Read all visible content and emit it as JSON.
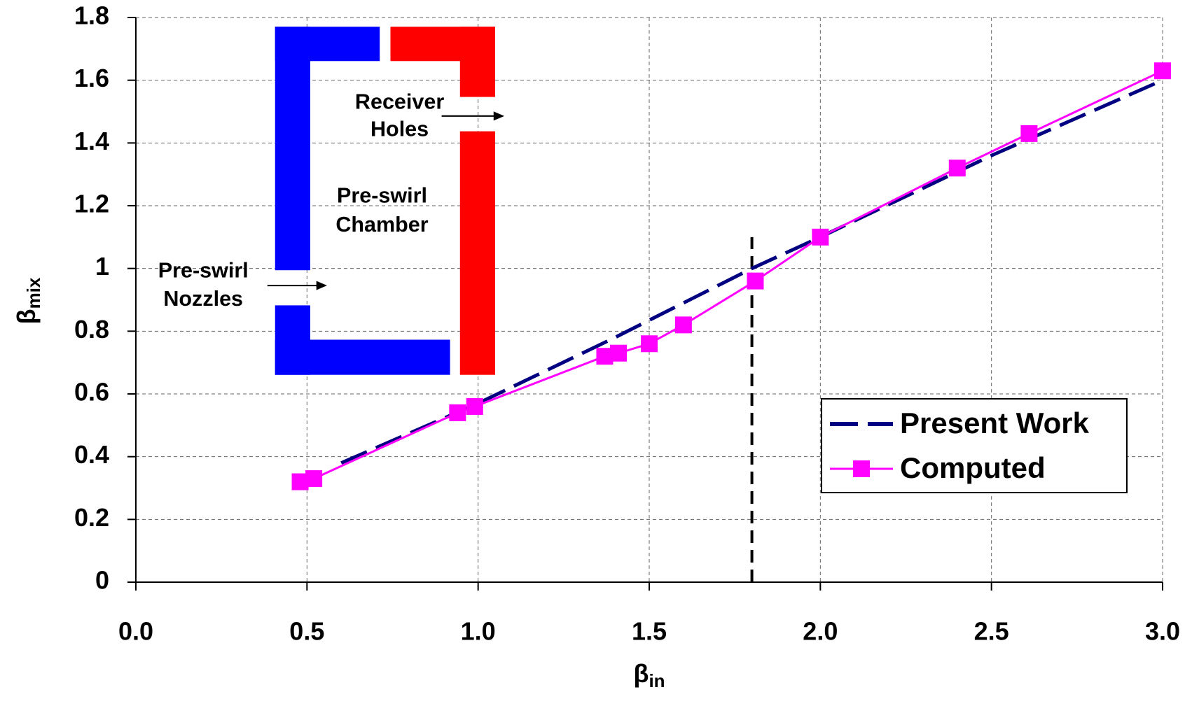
{
  "chart_data": {
    "type": "line",
    "xlabel": {
      "text": "β",
      "sub": "in"
    },
    "ylabel": {
      "text": "β",
      "sub": "mix"
    },
    "xlim": [
      0,
      3
    ],
    "ylim": [
      0,
      1.8
    ],
    "xticks": [
      {
        "value": 0,
        "label": "0.0"
      },
      0.5,
      {
        "value": 1,
        "label": "1.0"
      },
      1.5,
      {
        "value": 2,
        "label": "2.0"
      },
      2.5,
      {
        "value": 3,
        "label": "3.0"
      }
    ],
    "yticks": [
      0,
      0.2,
      0.4,
      0.6,
      0.8,
      1,
      1.2,
      1.4,
      1.6,
      1.8
    ],
    "grid": true,
    "legend": "lower right",
    "series": [
      {
        "name": "Present Work",
        "color": "#000080",
        "style": "dashed",
        "x": [
          0.6,
          1.0,
          1.4,
          1.8,
          2.0,
          2.5,
          3.0
        ],
        "values": [
          0.38,
          0.57,
          0.78,
          1.0,
          1.1,
          1.36,
          1.6
        ]
      },
      {
        "name": "Computed",
        "color": "#ff00ff",
        "style": "solid",
        "marker": "square",
        "x": [
          0.48,
          0.52,
          0.94,
          0.99,
          1.37,
          1.41,
          1.5,
          1.6,
          1.81,
          2.0,
          2.4,
          2.61,
          3.0
        ],
        "values": [
          0.32,
          0.33,
          0.54,
          0.56,
          0.72,
          0.73,
          0.76,
          0.82,
          0.96,
          1.1,
          1.32,
          1.43,
          1.63
        ]
      }
    ],
    "reference_line": {
      "x": 1.8,
      "y": [
        0,
        1.1
      ]
    },
    "annotations": [
      [
        "Receiver",
        "Holes"
      ],
      [
        "Pre-swirl",
        "Chamber"
      ],
      [
        "Pre-swirl",
        "Nozzles"
      ]
    ]
  }
}
